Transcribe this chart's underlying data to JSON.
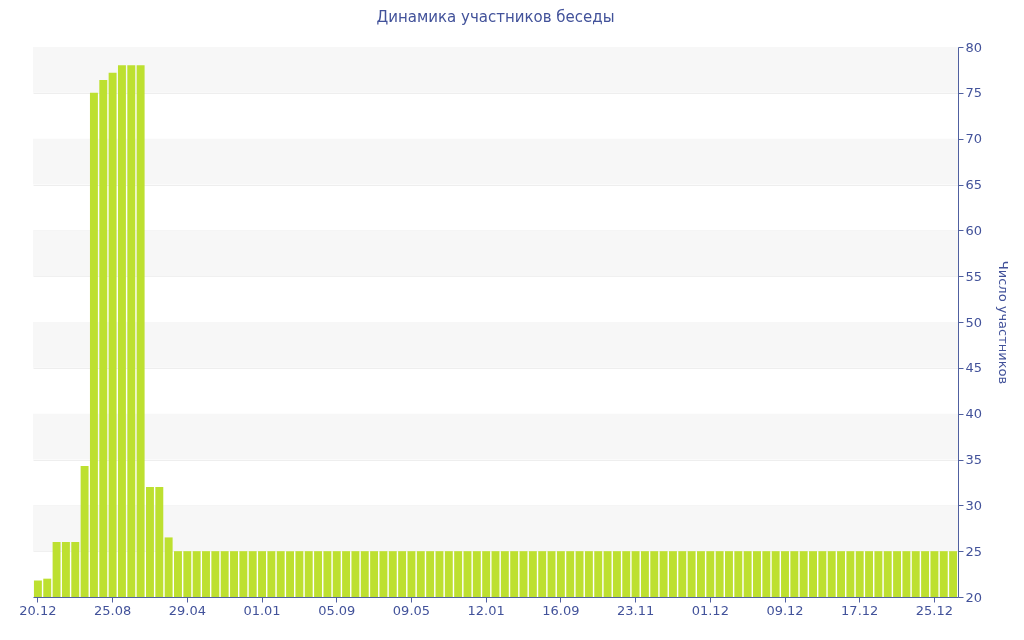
{
  "chart_data": {
    "type": "bar",
    "title": "Динамика участников беседы",
    "ylabel": "Число участников",
    "categories": [
      "20.12",
      null,
      null,
      null,
      null,
      null,
      null,
      null,
      "25.08",
      null,
      null,
      null,
      null,
      null,
      null,
      null,
      "29.04",
      null,
      null,
      null,
      null,
      null,
      null,
      null,
      "01.01",
      null,
      null,
      null,
      null,
      null,
      null,
      null,
      "05.09",
      null,
      null,
      null,
      null,
      null,
      null,
      null,
      "09.05",
      null,
      null,
      null,
      null,
      null,
      null,
      null,
      "12.01",
      null,
      null,
      null,
      null,
      null,
      null,
      null,
      "16.09",
      null,
      null,
      null,
      null,
      null,
      null,
      null,
      "23.11",
      null,
      null,
      null,
      null,
      null,
      null,
      null,
      "01.12",
      null,
      null,
      null,
      null,
      null,
      null,
      null,
      "09.12",
      null,
      null,
      null,
      null,
      null,
      null,
      null,
      "17.12",
      null,
      null,
      null,
      null,
      null,
      null,
      null,
      "25.12",
      null,
      null
    ],
    "values": [
      21.8,
      22,
      26,
      26,
      26,
      34.3,
      75,
      76.4,
      77.2,
      78,
      78,
      78,
      32,
      32,
      26.5,
      25,
      25,
      25,
      25,
      25,
      25,
      25,
      25,
      25,
      25,
      25,
      25,
      25,
      25,
      25,
      25,
      25,
      25,
      25,
      25,
      25,
      25,
      25,
      25,
      25,
      25,
      25,
      25,
      25,
      25,
      25,
      25,
      25,
      25,
      25,
      25,
      25,
      25,
      25,
      25,
      25,
      25,
      25,
      25,
      25,
      25,
      25,
      25,
      25,
      25,
      25,
      25,
      25,
      25,
      25,
      25,
      25,
      25,
      25,
      25,
      25,
      25,
      25,
      25,
      25,
      25,
      25,
      25,
      25,
      25,
      25,
      25,
      25,
      25,
      25,
      25,
      25,
      25,
      25,
      25,
      25,
      25,
      25,
      25
    ],
    "color": "#bde030",
    "ylim": [
      20,
      80
    ],
    "yticks": [
      20,
      25,
      30,
      35,
      40,
      45,
      50,
      55,
      60,
      65,
      70,
      75,
      80
    ],
    "grid": "y"
  }
}
